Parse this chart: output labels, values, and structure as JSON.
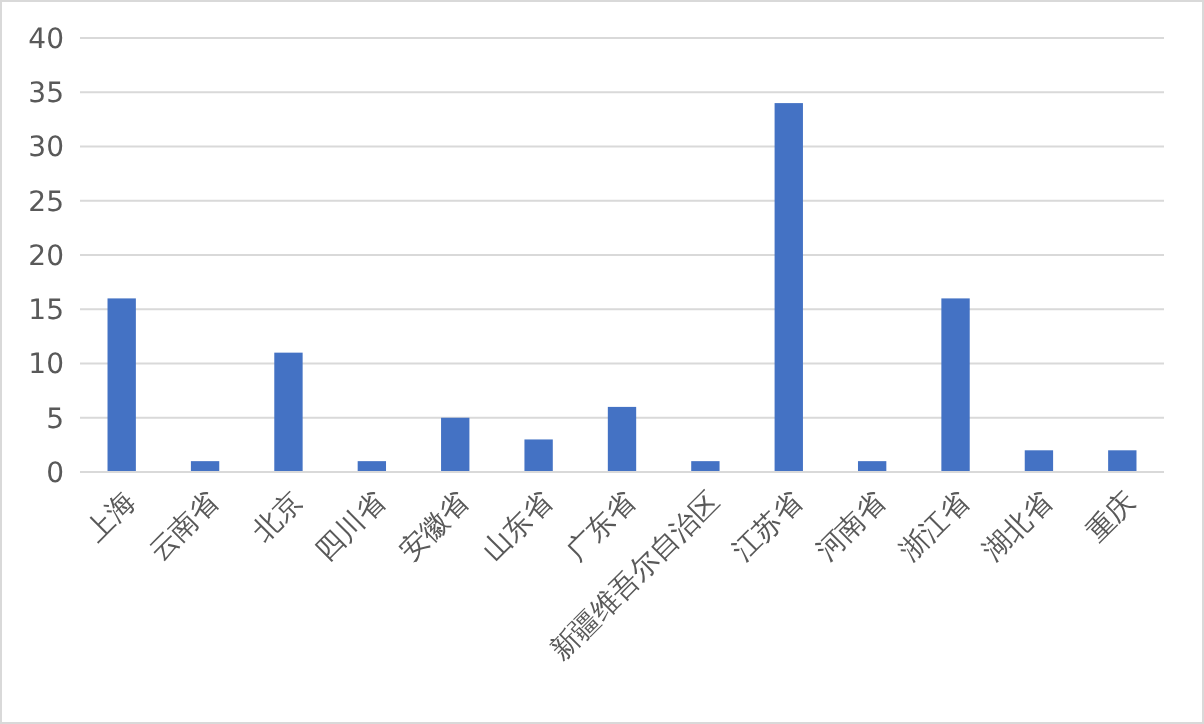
{
  "chart_data": {
    "type": "bar",
    "categories": [
      "上海",
      "云南省",
      "北京",
      "四川省",
      "安徽省",
      "山东省",
      "广东省",
      "新疆维吾尔自治区",
      "江苏省",
      "河南省",
      "浙江省",
      "湖北省",
      "重庆"
    ],
    "values": [
      16,
      1,
      11,
      1,
      5,
      3,
      6,
      1,
      34,
      1,
      16,
      2,
      2
    ],
    "color": "#4472c4",
    "ylim": [
      0,
      40
    ],
    "yticks": [
      0,
      5,
      10,
      15,
      20,
      25,
      30,
      35,
      40
    ],
    "grid": "y"
  }
}
